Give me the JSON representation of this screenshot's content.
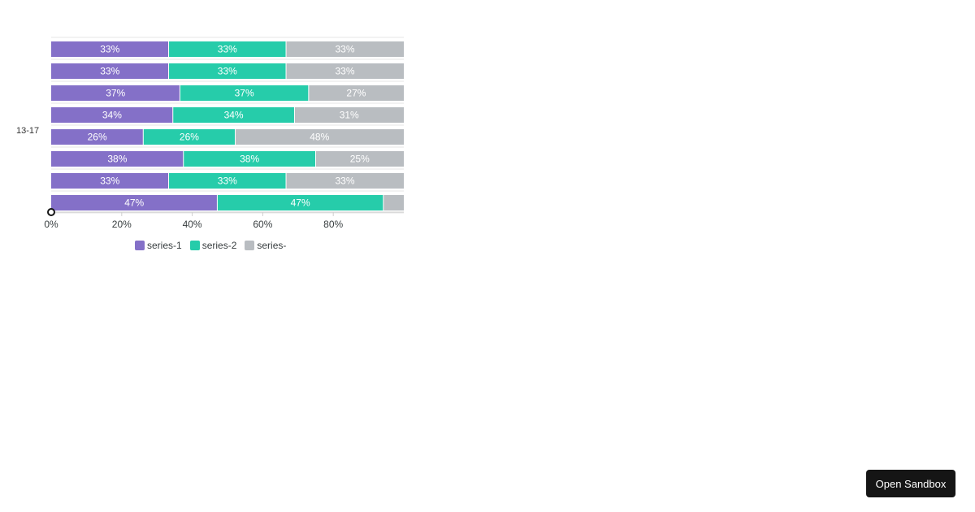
{
  "chart_data": {
    "type": "bar",
    "orientation": "horizontal",
    "stacked": "percent",
    "ylabel": "13-17",
    "xlim": [
      0,
      100
    ],
    "x_ticks": [
      "0%",
      "20%",
      "40%",
      "60%",
      "80%"
    ],
    "x_tick_values": [
      0,
      20,
      40,
      60,
      80
    ],
    "series": [
      {
        "name": "series-1",
        "color": "#8470c8",
        "values": [
          33.3,
          33.3,
          36.5,
          34.5,
          26.1,
          37.5,
          33.3,
          47.1
        ],
        "labels": [
          "33%",
          "33%",
          "37%",
          "34%",
          "26%",
          "38%",
          "33%",
          "47%"
        ]
      },
      {
        "name": "series-2",
        "color": "#26ccaa",
        "values": [
          33.3,
          33.3,
          36.5,
          34.5,
          26.1,
          37.5,
          33.3,
          47.1
        ],
        "labels": [
          "33%",
          "33%",
          "37%",
          "34%",
          "26%",
          "38%",
          "33%",
          "47%"
        ]
      },
      {
        "name": "series-",
        "color": "#b9bdc1",
        "values": [
          33.4,
          33.4,
          27.0,
          31.0,
          47.8,
          25.0,
          33.4,
          5.8
        ],
        "labels": [
          "33%",
          "33%",
          "27%",
          "31%",
          "48%",
          "25%",
          "33%",
          ""
        ]
      }
    ],
    "legend_position": "bottom"
  },
  "legend": {
    "items": [
      {
        "label": "series-1",
        "color": "#8470c8"
      },
      {
        "label": "series-2",
        "color": "#26ccaa"
      },
      {
        "label": "series-",
        "color": "#b9bdc1"
      }
    ]
  },
  "sandbox": {
    "label": "Open Sandbox"
  }
}
